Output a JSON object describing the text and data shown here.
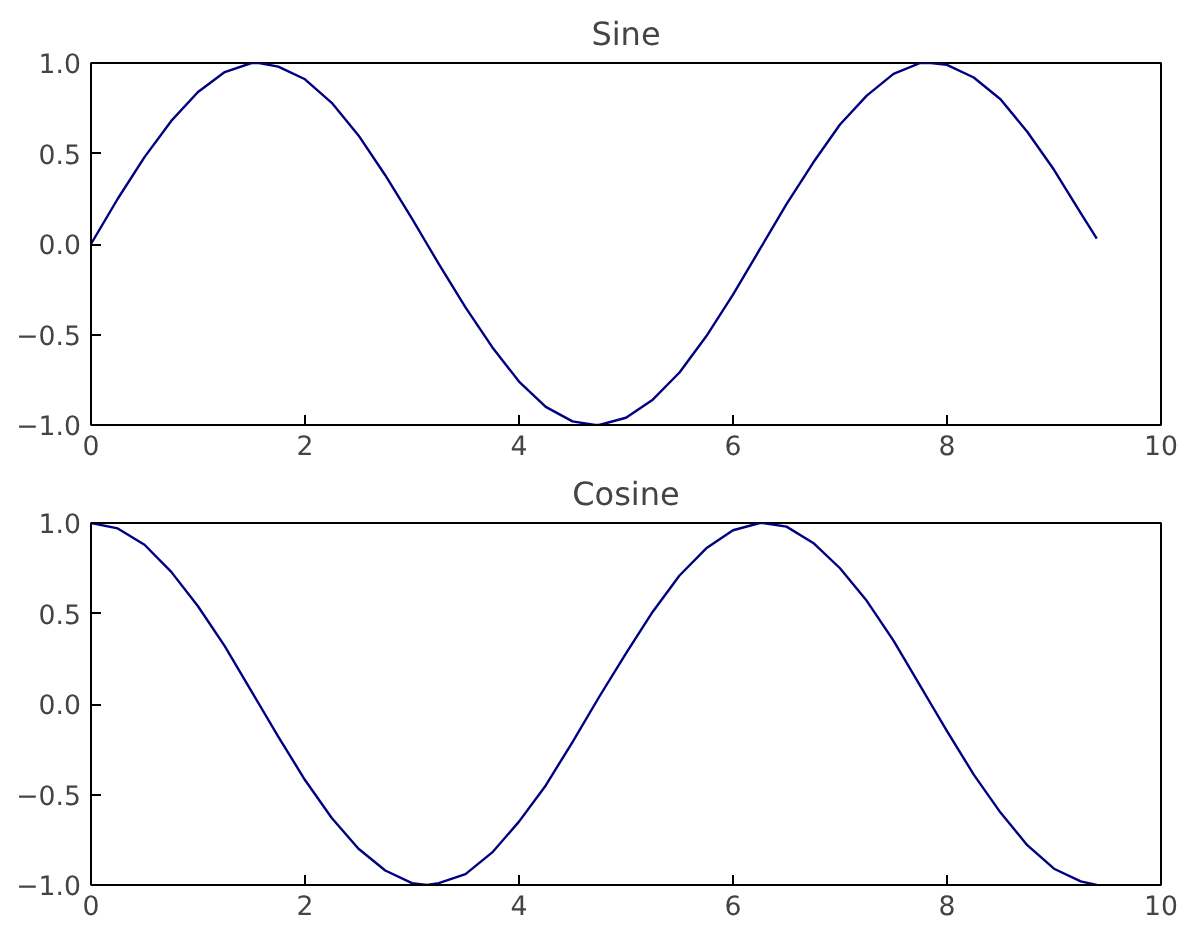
{
  "chart_data": [
    {
      "type": "line",
      "title": "Sine",
      "x": [
        0,
        0.25,
        0.5,
        0.75,
        1.0,
        1.25,
        1.5,
        1.57,
        1.75,
        2.0,
        2.25,
        2.5,
        2.75,
        3.0,
        3.14,
        3.25,
        3.5,
        3.75,
        4.0,
        4.25,
        4.5,
        4.71,
        4.75,
        5.0,
        5.25,
        5.5,
        5.75,
        6.0,
        6.25,
        6.28,
        6.5,
        6.75,
        7.0,
        7.25,
        7.5,
        7.75,
        7.85,
        8.0,
        8.25,
        8.5,
        8.75,
        9.0,
        9.25,
        9.4
      ],
      "series": [
        {
          "color": "#000080",
          "values": [
            0,
            0.25,
            0.48,
            0.68,
            0.84,
            0.95,
            1.0,
            1.0,
            0.98,
            0.91,
            0.78,
            0.6,
            0.38,
            0.14,
            0,
            -0.11,
            -0.35,
            -0.57,
            -0.76,
            -0.9,
            -0.98,
            -1.0,
            -1.0,
            -0.96,
            -0.86,
            -0.71,
            -0.51,
            -0.28,
            -0.03,
            0,
            0.22,
            0.45,
            0.66,
            0.82,
            0.94,
            1.0,
            1.0,
            0.99,
            0.92,
            0.8,
            0.62,
            0.41,
            0.17,
            0.03
          ]
        }
      ],
      "xlim": [
        0,
        10
      ],
      "xticks": [
        0,
        2,
        4,
        6,
        8,
        10
      ],
      "ylim": [
        -1,
        1
      ],
      "yticks": [
        {
          "value": -1,
          "label": "−1.0"
        },
        {
          "value": -0.5,
          "label": "−0.5"
        },
        {
          "value": 0,
          "label": "0.0"
        },
        {
          "value": 0.5,
          "label": "0.5"
        },
        {
          "value": 1,
          "label": "1.0"
        }
      ],
      "grid": false,
      "marker": "none",
      "line_style": "solid"
    },
    {
      "type": "line",
      "title": "Cosine",
      "x": [
        0,
        0.25,
        0.5,
        0.75,
        1.0,
        1.25,
        1.5,
        1.57,
        1.75,
        2.0,
        2.25,
        2.5,
        2.75,
        3.0,
        3.14,
        3.25,
        3.5,
        3.75,
        4.0,
        4.25,
        4.5,
        4.71,
        4.75,
        5.0,
        5.25,
        5.5,
        5.75,
        6.0,
        6.25,
        6.28,
        6.5,
        6.75,
        7.0,
        7.25,
        7.5,
        7.75,
        7.85,
        8.0,
        8.25,
        8.5,
        8.75,
        9.0,
        9.25,
        9.4
      ],
      "series": [
        {
          "color": "#000080",
          "values": [
            1,
            0.97,
            0.88,
            0.73,
            0.54,
            0.32,
            0.07,
            0,
            -0.18,
            -0.42,
            -0.63,
            -0.8,
            -0.92,
            -0.99,
            -1.0,
            -0.99,
            -0.94,
            -0.82,
            -0.65,
            -0.45,
            -0.21,
            0,
            0.04,
            0.28,
            0.51,
            0.71,
            0.86,
            0.96,
            1.0,
            1.0,
            0.98,
            0.89,
            0.75,
            0.57,
            0.35,
            0.1,
            0,
            -0.15,
            -0.39,
            -0.6,
            -0.78,
            -0.91,
            -0.98,
            -1.0
          ]
        }
      ],
      "xlim": [
        0,
        10
      ],
      "xticks": [
        0,
        2,
        4,
        6,
        8,
        10
      ],
      "ylim": [
        -1,
        1
      ],
      "yticks": [
        {
          "value": -1,
          "label": "−1.0"
        },
        {
          "value": -0.5,
          "label": "−0.5"
        },
        {
          "value": 0,
          "label": "0.0"
        },
        {
          "value": 0.5,
          "label": "0.5"
        },
        {
          "value": 1,
          "label": "1.0"
        }
      ],
      "grid": false,
      "marker": "none",
      "line_style": "solid"
    }
  ]
}
